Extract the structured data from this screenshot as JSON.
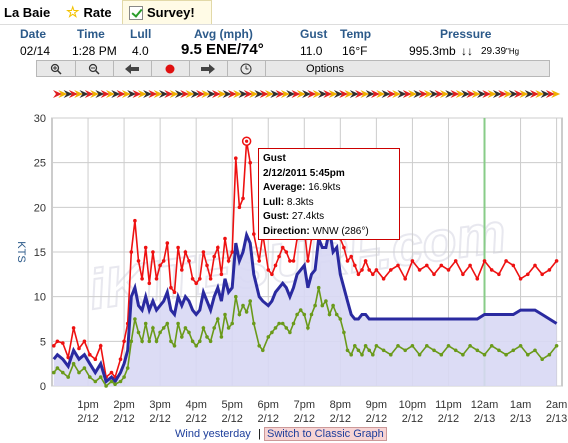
{
  "tabs": {
    "station": "La Baie",
    "rate": "Rate",
    "survey": "Survey!"
  },
  "observation": {
    "headers": [
      "Date",
      "Time",
      "Lull",
      "Avg (mph)",
      "Gust",
      "Temp",
      "Pressure"
    ],
    "date": "02/14",
    "time": "1:28 PM",
    "lull": "4.0",
    "avg": "9.5 ENE/74°",
    "gust": "11.0",
    "temp": "16°F",
    "pressure_mb": "995.3mb",
    "pressure_trend": "↓↓",
    "pressure_hg": "29.39",
    "pressure_hg_unit": "\"Hg"
  },
  "toolbar": {
    "zoom_in": "zoom-in-icon",
    "zoom_out": "zoom-out-icon",
    "back": "arrow-left-icon",
    "record": "red-dot-icon",
    "forward": "arrow-right-icon",
    "clock": "clock-icon",
    "options_label": "Options"
  },
  "colors": {
    "gust": "#ee1111",
    "avg": "#2a2aa0",
    "lull": "#6a9a1a",
    "fill": "#d8d8f4",
    "grid": "#cccccc",
    "now_line": "#88cc88"
  },
  "watermark": "iKITESURF.com",
  "tooltip": {
    "title": "Gust",
    "datetime": "2/12/2011 5:45pm",
    "average_label": "Average:",
    "average": "16.9kts",
    "lull_label": "Lull:",
    "lull": "8.3kts",
    "gust_label": "Gust:",
    "gust": "27.4kts",
    "direction_label": "Direction:",
    "direction": "WNW (286°)"
  },
  "footer": {
    "wind_yesterday": "Wind yesterday",
    "separator": "|",
    "classic_graph": "Switch to Classic Graph"
  },
  "chart_data": {
    "type": "line",
    "ylabel": "KTS",
    "ylim": [
      0,
      30
    ],
    "yticks": [
      0,
      5,
      10,
      15,
      20,
      25,
      30
    ],
    "grid": true,
    "x_tick_labels": [
      {
        "time": "1pm",
        "date": "2/12"
      },
      {
        "time": "2pm",
        "date": "2/12"
      },
      {
        "time": "3pm",
        "date": "2/12"
      },
      {
        "time": "4pm",
        "date": "2/12"
      },
      {
        "time": "5pm",
        "date": "2/12"
      },
      {
        "time": "6pm",
        "date": "2/12"
      },
      {
        "time": "7pm",
        "date": "2/12"
      },
      {
        "time": "8pm",
        "date": "2/12"
      },
      {
        "time": "9pm",
        "date": "2/12"
      },
      {
        "time": "10pm",
        "date": "2/12"
      },
      {
        "time": "11pm",
        "date": "2/12"
      },
      {
        "time": "12am",
        "date": "2/13"
      },
      {
        "time": "1am",
        "date": "2/13"
      },
      {
        "time": "2am",
        "date": "2/13"
      }
    ],
    "x_range_hours": [
      12.0,
      26.15
    ],
    "series": [
      {
        "name": "Gust",
        "x": [
          12.05,
          12.15,
          12.3,
          12.45,
          12.6,
          12.75,
          12.9,
          13.05,
          13.2,
          13.35,
          13.5,
          13.65,
          13.75,
          13.9,
          14.0,
          14.1,
          14.2,
          14.3,
          14.4,
          14.5,
          14.6,
          14.7,
          14.8,
          14.9,
          15.0,
          15.1,
          15.2,
          15.3,
          15.4,
          15.5,
          15.6,
          15.7,
          15.8,
          15.9,
          16.0,
          16.1,
          16.2,
          16.3,
          16.4,
          16.5,
          16.6,
          16.7,
          16.8,
          16.9,
          17.0,
          17.1,
          17.2,
          17.3,
          17.4,
          17.5,
          17.6,
          17.75,
          17.85,
          18.0,
          18.1,
          18.2,
          18.3,
          18.4,
          18.5,
          18.6,
          18.7,
          18.8,
          18.9,
          19.0,
          19.1,
          19.2,
          19.3,
          19.4,
          19.5,
          19.6,
          19.7,
          19.8,
          19.9,
          20.0,
          20.1,
          20.2,
          20.3,
          20.4,
          20.5,
          20.6,
          20.7,
          20.8,
          20.9,
          21.0,
          21.2,
          21.4,
          21.6,
          21.8,
          22.0,
          22.2,
          22.4,
          22.6,
          22.8,
          23.0,
          23.2,
          23.4,
          23.6,
          23.8,
          24.0,
          24.2,
          24.4,
          24.6,
          24.8,
          25.0,
          25.2,
          25.4,
          25.6,
          25.8,
          26.0
        ],
        "y": [
          4.5,
          5.0,
          4.8,
          3.2,
          6.5,
          4.2,
          5.0,
          3.5,
          3.0,
          4.5,
          1.0,
          1.5,
          1.0,
          3.0,
          5.0,
          7.0,
          15.0,
          18.5,
          14.0,
          12.0,
          15.5,
          11.5,
          15.0,
          12.0,
          13.5,
          14.0,
          16.0,
          11.0,
          10.5,
          15.5,
          13.0,
          15.0,
          14.0,
          12.0,
          11.5,
          12.0,
          15.0,
          13.5,
          12.0,
          14.5,
          15.5,
          12.5,
          16.5,
          14.0,
          15.0,
          25.5,
          20.0,
          21.0,
          27.4,
          25.0,
          17.0,
          14.0,
          17.0,
          13.0,
          12.5,
          13.5,
          14.5,
          15.5,
          15.0,
          14.0,
          14.0,
          16.5,
          17.5,
          17.5,
          14.0,
          16.5,
          17.0,
          25.0,
          22.0,
          22.5,
          25.5,
          20.5,
          22.0,
          16.5,
          15.5,
          14.0,
          14.5,
          13.5,
          12.5,
          13.0,
          14.0,
          13.0,
          12.5,
          13.0,
          12.0,
          13.0,
          13.5,
          12.0,
          14.0,
          13.0,
          13.5,
          12.5,
          13.5,
          13.0,
          14.0,
          12.5,
          13.5,
          12.0,
          14.0,
          13.0,
          12.5,
          14.0,
          13.5,
          12.0,
          12.5,
          13.5,
          12.5,
          13.0,
          14.0
        ]
      },
      {
        "name": "Average",
        "x": [
          12.05,
          12.15,
          12.3,
          12.45,
          12.6,
          12.75,
          12.9,
          13.05,
          13.2,
          13.35,
          13.5,
          13.65,
          13.75,
          13.9,
          14.0,
          14.1,
          14.2,
          14.3,
          14.4,
          14.5,
          14.6,
          14.7,
          14.8,
          14.9,
          15.0,
          15.1,
          15.2,
          15.3,
          15.4,
          15.5,
          15.6,
          15.7,
          15.8,
          15.9,
          16.0,
          16.1,
          16.2,
          16.3,
          16.4,
          16.5,
          16.6,
          16.7,
          16.8,
          16.9,
          17.0,
          17.1,
          17.2,
          17.3,
          17.4,
          17.5,
          17.6,
          17.75,
          17.85,
          18.0,
          18.1,
          18.2,
          18.3,
          18.4,
          18.5,
          18.6,
          18.7,
          18.8,
          18.9,
          19.0,
          19.1,
          19.2,
          19.3,
          19.4,
          19.5,
          19.6,
          19.7,
          19.8,
          19.9,
          20.0,
          20.1,
          20.2,
          20.3,
          20.4,
          20.5,
          20.6,
          20.7,
          20.8,
          20.9,
          21.0,
          21.2,
          21.4,
          21.6,
          21.8,
          22.0,
          22.2,
          22.4,
          22.6,
          22.8,
          23.0,
          23.2,
          23.4,
          23.6,
          23.8,
          24.0,
          24.2,
          24.4,
          24.6,
          24.8,
          25.0,
          25.2,
          25.4,
          25.6,
          25.8,
          26.0
        ],
        "y": [
          3.0,
          3.5,
          3.0,
          2.2,
          4.0,
          3.0,
          3.5,
          2.5,
          1.5,
          2.5,
          0.5,
          1.0,
          0.5,
          1.5,
          2.5,
          4.0,
          10.0,
          11.0,
          9.0,
          8.5,
          10.0,
          8.5,
          9.5,
          8.5,
          9.0,
          9.5,
          10.5,
          8.5,
          8.0,
          10.0,
          9.0,
          10.0,
          9.5,
          8.5,
          8.0,
          8.5,
          10.5,
          9.5,
          8.5,
          10.0,
          11.0,
          9.5,
          12.0,
          10.5,
          11.0,
          16.0,
          14.0,
          15.0,
          16.9,
          16.0,
          12.5,
          10.0,
          9.5,
          9.0,
          9.5,
          10.5,
          11.0,
          11.5,
          11.0,
          10.0,
          11.0,
          12.5,
          13.0,
          13.5,
          11.0,
          12.5,
          13.0,
          16.5,
          15.5,
          15.5,
          17.5,
          15.0,
          15.5,
          12.5,
          11.0,
          9.5,
          8.0,
          7.5,
          7.5,
          8.0,
          8.0,
          7.5,
          7.5,
          7.5,
          7.5,
          7.5,
          7.5,
          7.5,
          7.5,
          7.5,
          7.5,
          7.5,
          7.5,
          7.5,
          7.5,
          7.5,
          7.5,
          7.5,
          8.0,
          8.0,
          8.0,
          8.0,
          8.0,
          8.5,
          8.5,
          8.5,
          8.0,
          7.5,
          7.0
        ]
      },
      {
        "name": "Lull",
        "x": [
          12.05,
          12.15,
          12.3,
          12.45,
          12.6,
          12.75,
          12.9,
          13.05,
          13.2,
          13.35,
          13.5,
          13.65,
          13.75,
          13.9,
          14.0,
          14.1,
          14.2,
          14.3,
          14.4,
          14.5,
          14.6,
          14.7,
          14.8,
          14.9,
          15.0,
          15.1,
          15.2,
          15.3,
          15.4,
          15.5,
          15.6,
          15.7,
          15.8,
          15.9,
          16.0,
          16.1,
          16.2,
          16.3,
          16.4,
          16.5,
          16.6,
          16.7,
          16.8,
          16.9,
          17.0,
          17.1,
          17.2,
          17.3,
          17.4,
          17.5,
          17.6,
          17.75,
          17.85,
          18.0,
          18.1,
          18.2,
          18.3,
          18.4,
          18.5,
          18.6,
          18.7,
          18.8,
          18.9,
          19.0,
          19.1,
          19.2,
          19.3,
          19.4,
          19.5,
          19.6,
          19.7,
          19.8,
          19.9,
          20.0,
          20.1,
          20.2,
          20.3,
          20.4,
          20.5,
          20.6,
          20.7,
          20.8,
          20.9,
          21.0,
          21.2,
          21.4,
          21.6,
          21.8,
          22.0,
          22.2,
          22.4,
          22.6,
          22.8,
          23.0,
          23.2,
          23.4,
          23.6,
          23.8,
          24.0,
          24.2,
          24.4,
          24.6,
          24.8,
          25.0,
          25.2,
          25.4,
          25.6,
          25.8,
          26.0
        ],
        "y": [
          1.5,
          2.0,
          1.5,
          1.0,
          2.5,
          1.5,
          2.0,
          1.0,
          0.5,
          1.0,
          0.0,
          0.5,
          0.2,
          0.5,
          1.0,
          2.0,
          5.0,
          7.5,
          6.0,
          5.0,
          7.0,
          5.0,
          6.5,
          5.0,
          6.0,
          6.5,
          7.0,
          5.0,
          4.5,
          7.0,
          5.5,
          6.5,
          6.0,
          5.0,
          4.5,
          5.0,
          6.5,
          5.5,
          5.0,
          6.5,
          7.5,
          5.5,
          8.0,
          6.5,
          7.0,
          10.0,
          8.0,
          9.0,
          8.3,
          9.5,
          7.0,
          4.5,
          4.0,
          5.5,
          6.0,
          6.5,
          7.0,
          7.0,
          6.5,
          6.0,
          7.0,
          8.0,
          8.5,
          8.0,
          6.5,
          8.0,
          9.0,
          11.0,
          9.0,
          9.5,
          8.0,
          9.0,
          8.0,
          7.5,
          6.0,
          4.0,
          3.5,
          4.5,
          4.0,
          3.5,
          4.5,
          4.0,
          3.5,
          4.5,
          4.0,
          3.5,
          4.5,
          4.0,
          4.5,
          3.5,
          4.5,
          4.0,
          3.5,
          4.5,
          4.0,
          3.5,
          4.5,
          4.0,
          3.5,
          4.5,
          4.0,
          3.5,
          4.0,
          4.5,
          3.5,
          4.0,
          3.0,
          3.5,
          4.5
        ]
      }
    ]
  }
}
